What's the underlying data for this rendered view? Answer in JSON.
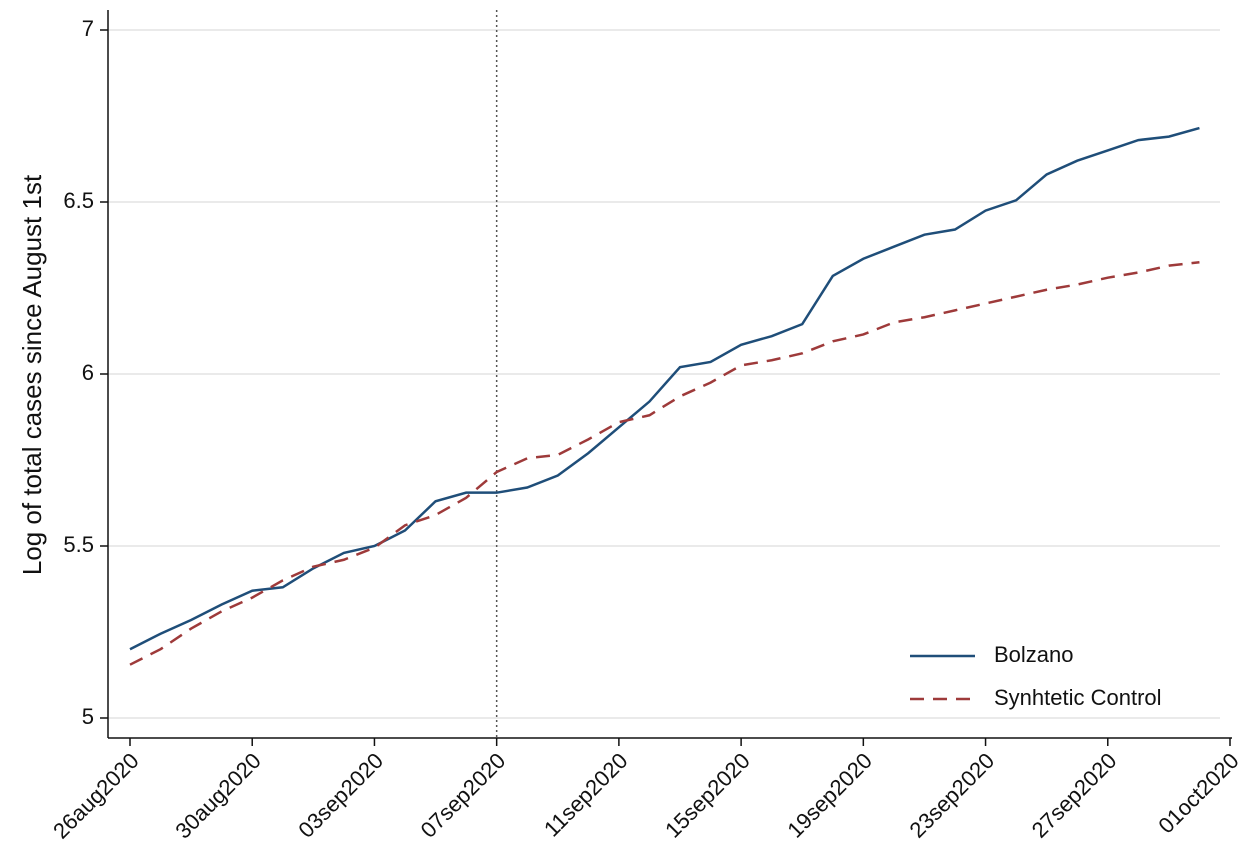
{
  "chart_data": {
    "type": "line",
    "ylabel": "Log of total cases since August 1st",
    "x": [
      "2020-08-26",
      "2020-08-27",
      "2020-08-28",
      "2020-08-29",
      "2020-08-30",
      "2020-08-31",
      "2020-09-01",
      "2020-09-02",
      "2020-09-03",
      "2020-09-04",
      "2020-09-05",
      "2020-09-06",
      "2020-09-07",
      "2020-09-08",
      "2020-09-09",
      "2020-09-10",
      "2020-09-11",
      "2020-09-12",
      "2020-09-13",
      "2020-09-14",
      "2020-09-15",
      "2020-09-16",
      "2020-09-17",
      "2020-09-18",
      "2020-09-19",
      "2020-09-20",
      "2020-09-21",
      "2020-09-22",
      "2020-09-23",
      "2020-09-24",
      "2020-09-25",
      "2020-09-26",
      "2020-09-27",
      "2020-09-28",
      "2020-09-29",
      "2020-09-30"
    ],
    "series": [
      {
        "name": "Bolzano",
        "color": "#1f4e79",
        "dash": "solid",
        "values": [
          5.2,
          5.245,
          5.285,
          5.33,
          5.37,
          5.38,
          5.435,
          5.48,
          5.5,
          5.545,
          5.63,
          5.655,
          5.655,
          5.67,
          5.705,
          5.77,
          5.845,
          5.92,
          6.02,
          6.035,
          6.085,
          6.11,
          6.145,
          6.285,
          6.335,
          6.37,
          6.405,
          6.42,
          6.475,
          6.505,
          6.58,
          6.62,
          6.65,
          6.68,
          6.69,
          6.715
        ]
      },
      {
        "name": "Synhtetic Control",
        "color": "#9e3a3a",
        "dash": "dashed",
        "values": [
          5.155,
          5.2,
          5.26,
          5.31,
          5.35,
          5.4,
          5.44,
          5.46,
          5.495,
          5.56,
          5.59,
          5.64,
          5.715,
          5.755,
          5.765,
          5.81,
          5.86,
          5.88,
          5.935,
          5.975,
          6.025,
          6.04,
          6.06,
          6.095,
          6.115,
          6.15,
          6.165,
          6.185,
          6.205,
          6.225,
          6.245,
          6.26,
          6.28,
          6.295,
          6.315,
          6.325
        ]
      }
    ],
    "xlim": [
      "2020-08-26",
      "2020-10-01"
    ],
    "xticks": [
      {
        "value": "2020-08-26",
        "label": "26aug2020"
      },
      {
        "value": "2020-08-30",
        "label": "30aug2020"
      },
      {
        "value": "2020-09-03",
        "label": "03sep2020"
      },
      {
        "value": "2020-09-07",
        "label": "07sep2020"
      },
      {
        "value": "2020-09-11",
        "label": "11sep2020"
      },
      {
        "value": "2020-09-15",
        "label": "15sep2020"
      },
      {
        "value": "2020-09-19",
        "label": "19sep2020"
      },
      {
        "value": "2020-09-23",
        "label": "23sep2020"
      },
      {
        "value": "2020-09-27",
        "label": "27sep2020"
      },
      {
        "value": "2020-10-01",
        "label": "01oct2020"
      }
    ],
    "ylim": [
      5,
      7
    ],
    "yticks": [
      5,
      5.5,
      6,
      6.5,
      7
    ],
    "grid": true,
    "vline": "2020-09-07",
    "legend": "lower right"
  }
}
